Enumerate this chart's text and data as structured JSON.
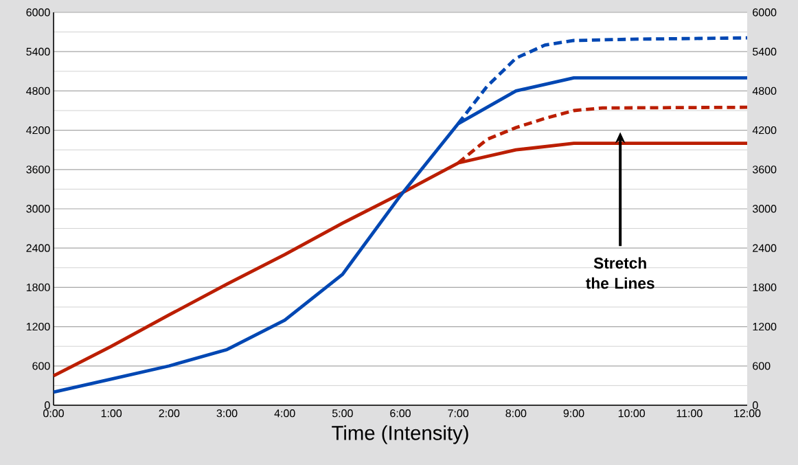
{
  "chart_data": {
    "type": "line",
    "xlabel": "Time (Intensity)",
    "x": [
      0,
      1,
      2,
      3,
      4,
      5,
      6,
      7,
      8,
      9,
      10,
      11,
      12
    ],
    "series": [
      {
        "color": "#bb1e00",
        "line_style": "solid",
        "values": [
          450,
          900,
          1380,
          1850,
          2300,
          2780,
          3230,
          3700,
          3900,
          4000,
          4000,
          4000,
          4000
        ]
      },
      {
        "color": "#0047b3",
        "line_style": "solid",
        "values": [
          200,
          400,
          600,
          850,
          1300,
          2000,
          3200,
          4300,
          4800,
          5000,
          5000,
          5000,
          5000
        ]
      },
      {
        "color": "#bb1e00",
        "line_style": "dashed",
        "x": [
          7,
          7.5,
          8,
          8.5,
          9,
          9.5,
          12
        ],
        "values": [
          3700,
          4060,
          4240,
          4380,
          4500,
          4540,
          4550
        ]
      },
      {
        "color": "#0047b3",
        "line_style": "dashed",
        "x": [
          7,
          7.5,
          8,
          8.5,
          9,
          10,
          12
        ],
        "values": [
          4300,
          4870,
          5300,
          5500,
          5570,
          5590,
          5610
        ]
      }
    ],
    "xlim": [
      0,
      12
    ],
    "xticks": [
      {
        "value": 0,
        "label": "0:00"
      },
      {
        "value": 1,
        "label": "1:00"
      },
      {
        "value": 2,
        "label": "2:00"
      },
      {
        "value": 3,
        "label": "3:00"
      },
      {
        "value": 4,
        "label": "4:00"
      },
      {
        "value": 5,
        "label": "5:00"
      },
      {
        "value": 6,
        "label": "6:00"
      },
      {
        "value": 7,
        "label": "7:00"
      },
      {
        "value": 8,
        "label": "8:00"
      },
      {
        "value": 9,
        "label": "9:00"
      },
      {
        "value": 10,
        "label": "10:00"
      },
      {
        "value": 11,
        "label": "11:00"
      },
      {
        "value": 12,
        "label": "12:00"
      }
    ],
    "ylim": [
      0,
      6000
    ],
    "yticks": [
      0,
      {
        "value": 300,
        "label": null
      },
      600,
      {
        "value": 900,
        "label": null
      },
      1200,
      {
        "value": 1500,
        "label": null
      },
      1800,
      {
        "value": 2100,
        "label": null
      },
      2400,
      {
        "value": 2700,
        "label": null
      },
      3000,
      {
        "value": 3300,
        "label": null
      },
      3600,
      {
        "value": 3900,
        "label": null
      },
      4200,
      {
        "value": 4500,
        "label": null
      },
      4800,
      {
        "value": 5100,
        "label": null
      },
      5400,
      {
        "value": 5700,
        "label": null
      },
      6000
    ],
    "y2lim": [
      0,
      6000
    ],
    "y2ticks": [
      0,
      600,
      1200,
      1800,
      2400,
      3000,
      3600,
      4200,
      4800,
      5400,
      6000
    ],
    "grid": "y",
    "marker": "none",
    "annotations": [
      "Stretch the Lines"
    ]
  }
}
